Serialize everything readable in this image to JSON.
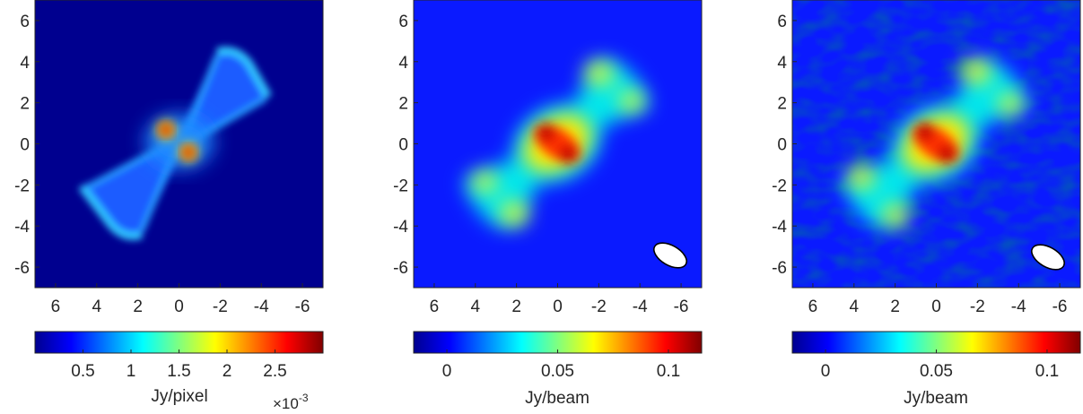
{
  "chart_data": [
    {
      "type": "heatmap",
      "xlim": [
        7,
        -7
      ],
      "ylim": [
        -7,
        7
      ],
      "xticks": [
        "6",
        "4",
        "2",
        "0",
        "-2",
        "-4",
        "-6"
      ],
      "xtick_values": [
        6,
        4,
        2,
        0,
        -2,
        -4,
        -6
      ],
      "yticks": [
        "6",
        "4",
        "2",
        "0",
        "-2",
        "-4",
        "-6"
      ],
      "ytick_values": [
        6,
        4,
        2,
        0,
        -2,
        -4,
        -6
      ],
      "grid": false,
      "colormap": "jet",
      "colorbar": {
        "label": "Jy/pixel",
        "range": [
          0,
          0.003
        ],
        "ticks": [
          "0.5",
          "1",
          "1.5",
          "2",
          "2.5"
        ],
        "tick_values": [
          0.0005,
          0.001,
          0.0015,
          0.002,
          0.0025
        ],
        "multiplier": "×10",
        "multiplier_exponent": "-3"
      },
      "beam": null
    },
    {
      "type": "heatmap",
      "xlim": [
        7,
        -7
      ],
      "ylim": [
        -7,
        7
      ],
      "xticks": [
        "6",
        "4",
        "2",
        "0",
        "-2",
        "-4",
        "-6"
      ],
      "xtick_values": [
        6,
        4,
        2,
        0,
        -2,
        -4,
        -6
      ],
      "yticks": [
        "6",
        "4",
        "2",
        "0",
        "-2",
        "-4",
        "-6"
      ],
      "ytick_values": [
        6,
        4,
        2,
        0,
        -2,
        -4,
        -6
      ],
      "grid": false,
      "colormap": "jet",
      "colorbar": {
        "label": "Jy/beam",
        "range": [
          -0.015,
          0.115
        ],
        "ticks": [
          "0",
          "0.05",
          "0.1"
        ],
        "tick_values": [
          0,
          0.05,
          0.1
        ]
      },
      "beam": {
        "center": [
          -5.5,
          -5.7
        ],
        "major": 1.8,
        "minor": 1.0,
        "angle_deg": 30
      }
    },
    {
      "type": "heatmap",
      "xlim": [
        7,
        -7
      ],
      "ylim": [
        -7,
        7
      ],
      "xticks": [
        "6",
        "4",
        "2",
        "0",
        "-2",
        "-4",
        "-6"
      ],
      "xtick_values": [
        6,
        4,
        2,
        0,
        -2,
        -4,
        -6
      ],
      "yticks": [
        "6",
        "4",
        "2",
        "0",
        "-2",
        "-4",
        "-6"
      ],
      "ytick_values": [
        6,
        4,
        2,
        0,
        -2,
        -4,
        -6
      ],
      "grid": false,
      "colormap": "jet",
      "colorbar": {
        "label": "Jy/beam",
        "range": [
          -0.015,
          0.115
        ],
        "ticks": [
          "0",
          "0.05",
          "0.1"
        ],
        "tick_values": [
          0,
          0.05,
          0.1
        ]
      },
      "beam": {
        "center": [
          -5.5,
          -5.7
        ],
        "major": 1.8,
        "minor": 1.0,
        "angle_deg": 30
      }
    }
  ]
}
